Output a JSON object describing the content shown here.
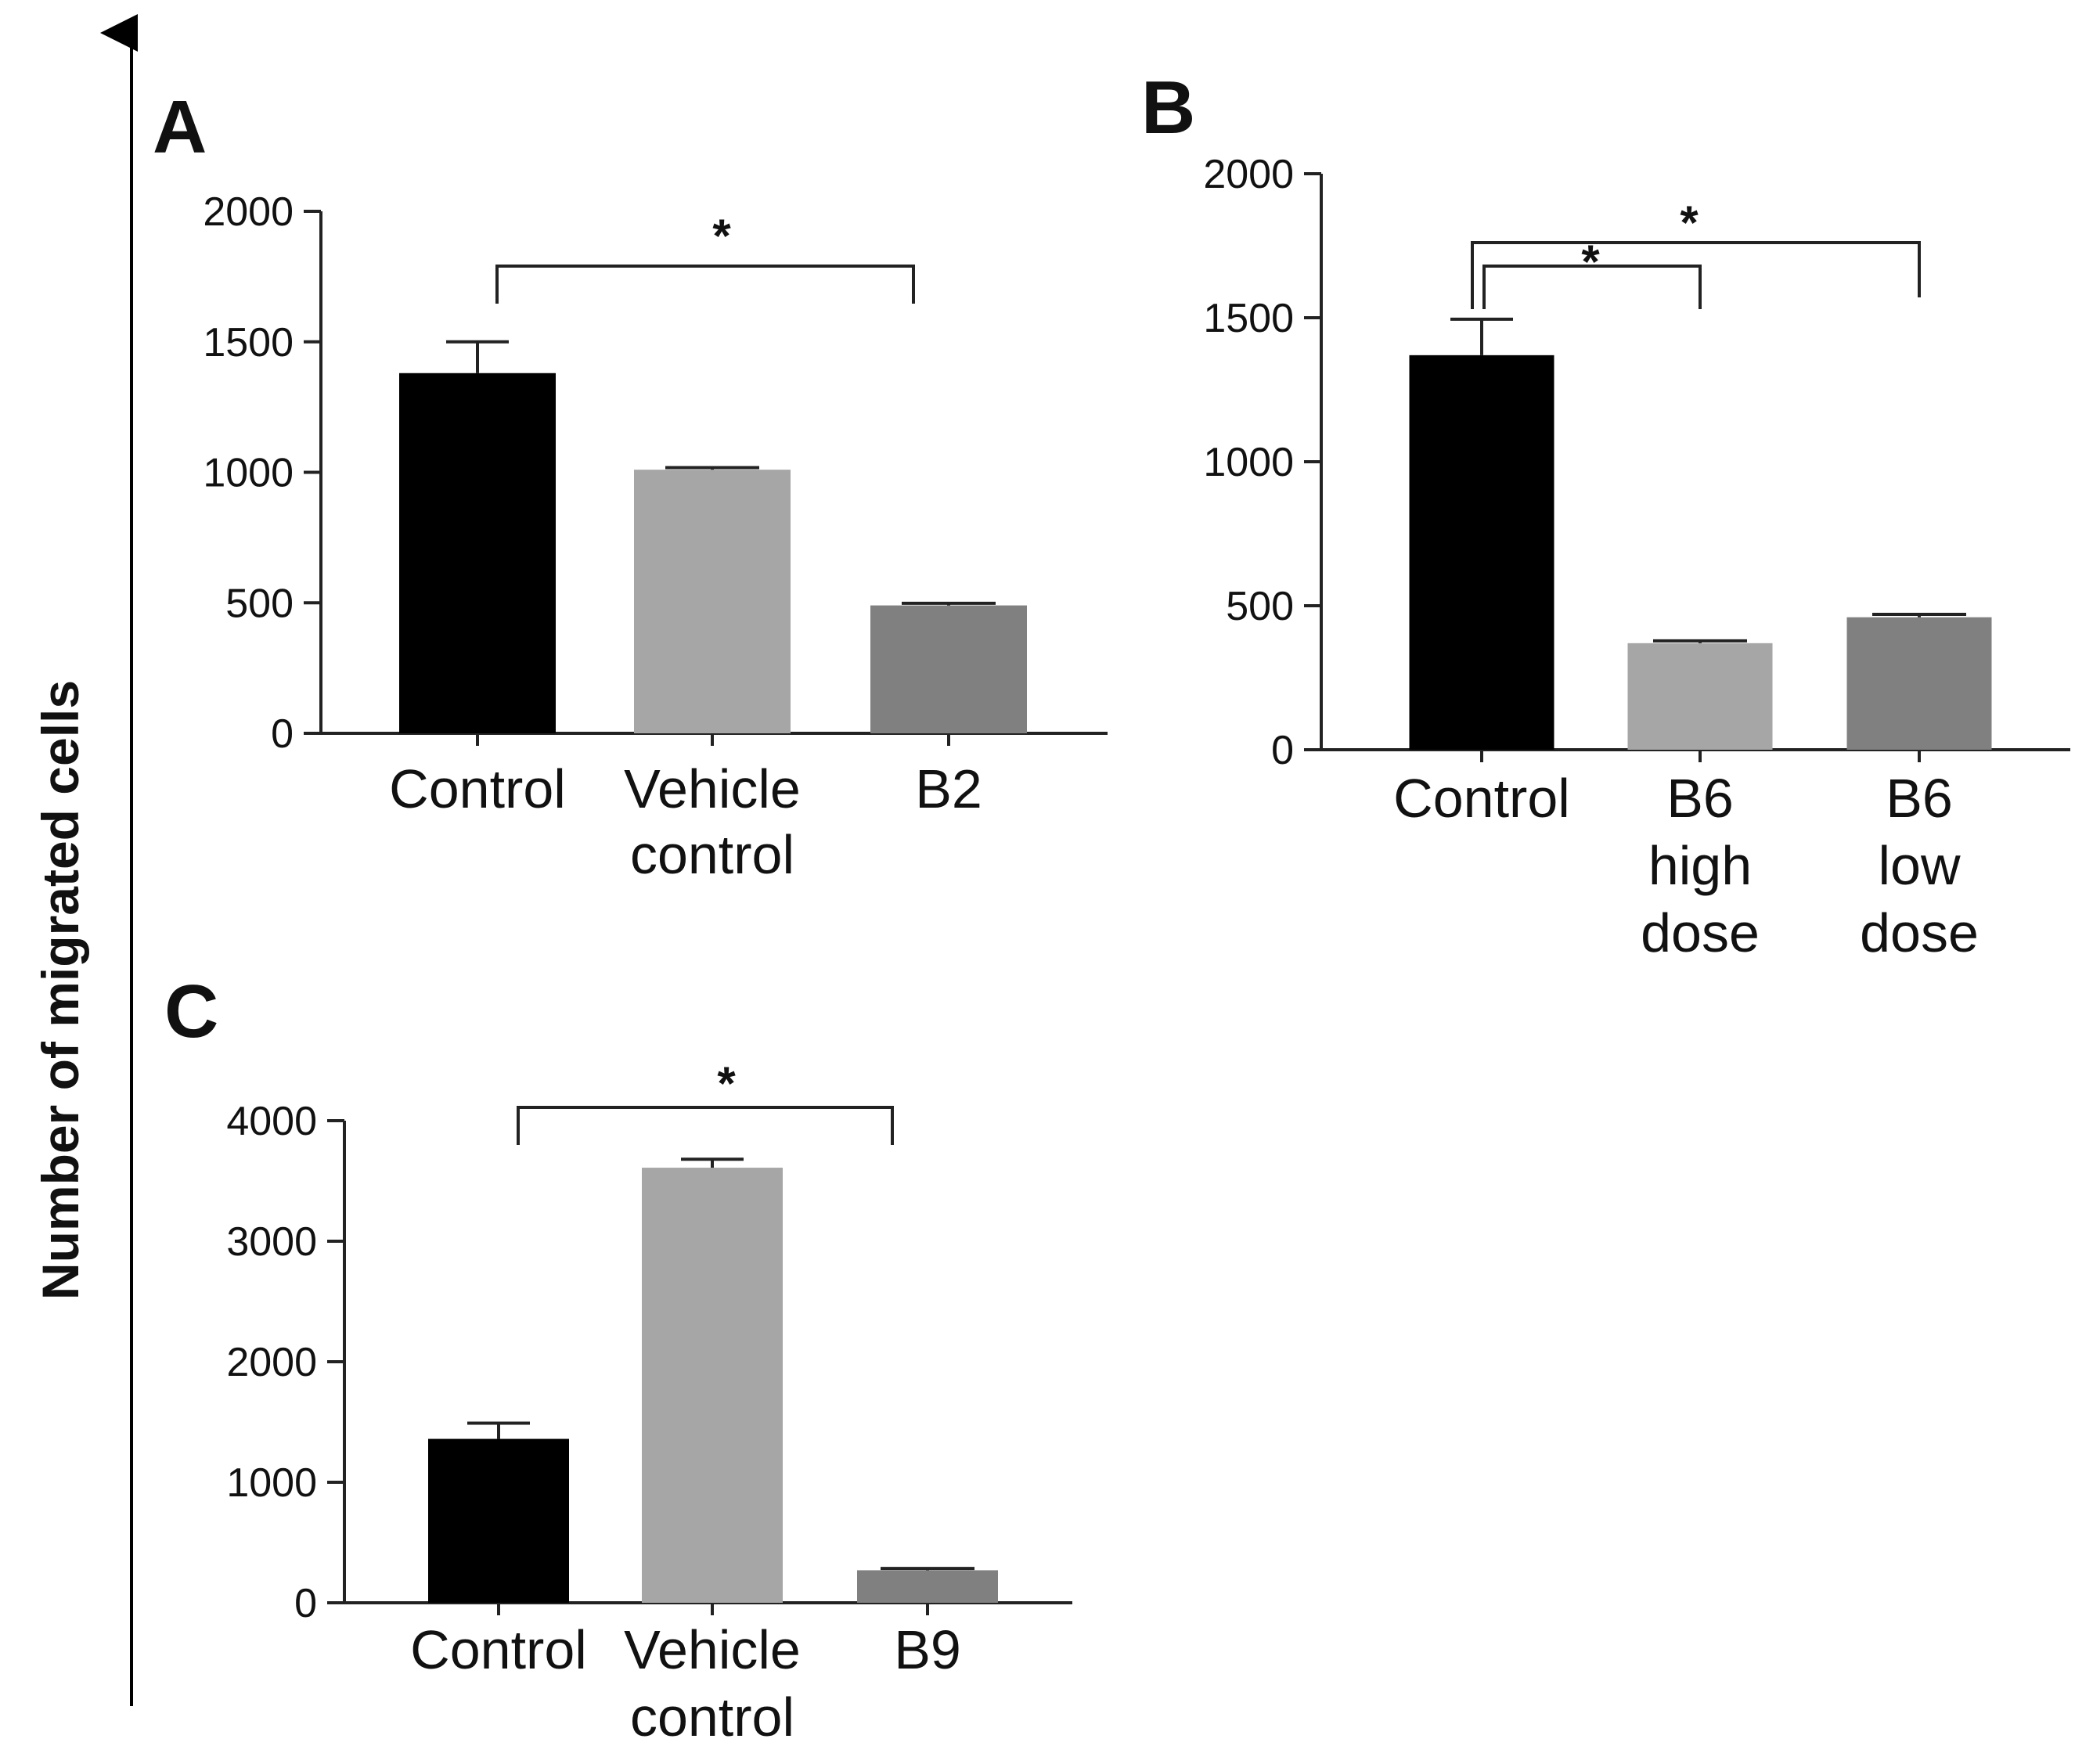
{
  "y_axis_label": "Number of migrated cells",
  "chart_data": [
    {
      "type": "bar",
      "panel": "A",
      "categories": [
        [
          "Control"
        ],
        [
          "Vehicle",
          "control"
        ],
        [
          "B2"
        ]
      ],
      "values": [
        1380,
        1010,
        490
      ],
      "errors": [
        120,
        8,
        8
      ],
      "colors": [
        "#000000",
        "#a6a6a6",
        "#808080"
      ],
      "ylim": [
        0,
        2000
      ],
      "yticks": [
        0,
        500,
        1000,
        1500,
        2000
      ],
      "significance": [
        {
          "from": 0,
          "to": 2,
          "label": "*"
        }
      ]
    },
    {
      "type": "bar",
      "panel": "B",
      "categories": [
        [
          "Control"
        ],
        [
          "B6",
          "high",
          "dose"
        ],
        [
          "B6",
          "low",
          "dose"
        ]
      ],
      "values": [
        1370,
        370,
        460
      ],
      "errors": [
        125,
        8,
        10
      ],
      "colors": [
        "#000000",
        "#a6a6a6",
        "#808080"
      ],
      "ylim": [
        0,
        2000
      ],
      "yticks": [
        0,
        500,
        1000,
        1500,
        2000
      ],
      "significance": [
        {
          "from": 0,
          "to": 1,
          "label": "*"
        },
        {
          "from": 0,
          "to": 2,
          "label": "*"
        }
      ]
    },
    {
      "type": "bar",
      "panel": "C",
      "categories": [
        [
          "Control"
        ],
        [
          "Vehicle",
          "control"
        ],
        [
          "B9"
        ]
      ],
      "values": [
        1360,
        3610,
        270
      ],
      "errors": [
        130,
        70,
        15
      ],
      "colors": [
        "#000000",
        "#a6a6a6",
        "#808080"
      ],
      "ylim": [
        0,
        4000
      ],
      "yticks": [
        0,
        1000,
        2000,
        3000,
        4000
      ],
      "significance": [
        {
          "from": 0,
          "to": 2,
          "label": "*"
        }
      ]
    }
  ]
}
